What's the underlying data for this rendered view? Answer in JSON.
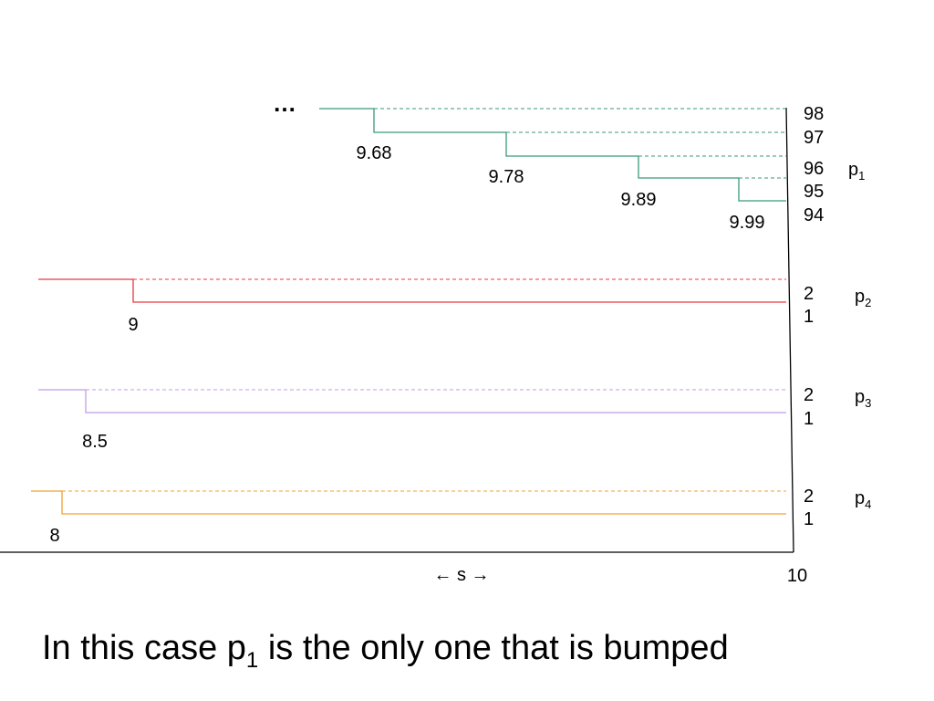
{
  "diagram": {
    "ellipsis": "…",
    "ellipsis_color": "#20a0a0",
    "axis_label": "← s →",
    "axis_end_label": "10",
    "caption_prefix": "In this case p",
    "caption_subscript": "1",
    "caption_suffix": " is the only one that is bumped",
    "groups": [
      {
        "id": "p1",
        "name_base": "p",
        "name_sub": "1",
        "color": "#3a9a78",
        "levels": [
          "98",
          "97",
          "96",
          "95",
          "94"
        ],
        "breaks": [
          "9.68",
          "9.78",
          "9.89",
          "9.99"
        ]
      },
      {
        "id": "p2",
        "name_base": "p",
        "name_sub": "2",
        "color": "#e8393f",
        "levels": [
          "2",
          "1"
        ],
        "breaks": [
          "9"
        ]
      },
      {
        "id": "p3",
        "name_base": "p",
        "name_sub": "3",
        "color": "#c39be6",
        "levels": [
          "2",
          "1"
        ],
        "breaks": [
          "8.5"
        ]
      },
      {
        "id": "p4",
        "name_base": "p",
        "name_sub": "4",
        "color": "#f0a233",
        "levels": [
          "2",
          "1"
        ],
        "breaks": [
          "8"
        ]
      }
    ]
  }
}
